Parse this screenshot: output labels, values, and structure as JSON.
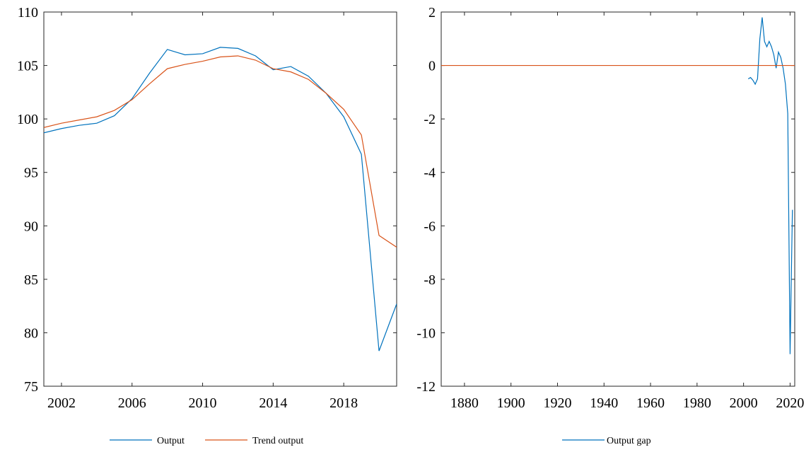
{
  "chart_data": [
    {
      "type": "line",
      "x": [
        2001,
        2002,
        2003,
        2004,
        2005,
        2006,
        2007,
        2008,
        2009,
        2010,
        2011,
        2012,
        2013,
        2014,
        2015,
        2016,
        2017,
        2018,
        2019,
        2020,
        2021
      ],
      "series": [
        {
          "name": "Output",
          "color": "#0072BD",
          "values": [
            98.7,
            99.1,
            99.4,
            99.6,
            100.3,
            101.9,
            104.3,
            106.5,
            106.0,
            106.1,
            106.7,
            106.6,
            105.9,
            104.6,
            104.9,
            104.0,
            102.4,
            100.2,
            96.7,
            78.3,
            82.7
          ]
        },
        {
          "name": "Trend output",
          "color": "#D95319",
          "values": [
            99.2,
            99.6,
            99.9,
            100.2,
            100.8,
            101.8,
            103.3,
            104.7,
            105.1,
            105.4,
            105.8,
            105.9,
            105.5,
            104.7,
            104.4,
            103.7,
            102.4,
            100.9,
            98.5,
            89.1,
            88.0
          ]
        }
      ],
      "xlim": [
        2001,
        2021
      ],
      "ylim": [
        75,
        110
      ],
      "xticks": [
        2002,
        2006,
        2010,
        2014,
        2018
      ],
      "xtick_labels": [
        "2002",
        "2006",
        "2010",
        "2014",
        "2018"
      ],
      "yticks": [
        75,
        80,
        85,
        90,
        95,
        100,
        105,
        110
      ],
      "ytick_labels": [
        "75",
        "80",
        "85",
        "90",
        "95",
        "100",
        "105",
        "110"
      ],
      "title": "",
      "xlabel": "",
      "ylabel": "",
      "grid": false,
      "legend": {
        "placement": "bottom",
        "entries": [
          "Output",
          "Trend output"
        ]
      }
    },
    {
      "type": "line",
      "series": [
        {
          "name": "Output gap",
          "color": "#0072BD",
          "x": [
            2002,
            2003,
            2004,
            2005,
            2006,
            2007,
            2008,
            2009,
            2010,
            2011,
            2012,
            2013,
            2014,
            2015,
            2016,
            2017,
            2018,
            2019,
            2020,
            2021
          ],
          "values": [
            -0.5,
            -0.45,
            -0.55,
            -0.7,
            -0.5,
            1.0,
            1.8,
            0.9,
            0.7,
            0.9,
            0.7,
            0.4,
            -0.1,
            0.5,
            0.3,
            -0.1,
            -0.7,
            -1.8,
            -10.8,
            -5.4
          ]
        },
        {
          "name": "",
          "color": "#D95319",
          "x": [
            1870,
            2022
          ],
          "values": [
            0,
            0
          ]
        }
      ],
      "xlim": [
        1870,
        2022
      ],
      "ylim": [
        -12,
        2
      ],
      "xticks": [
        1880,
        1900,
        1920,
        1940,
        1960,
        1980,
        2000,
        2020
      ],
      "xtick_labels": [
        "1880",
        "1900",
        "1920",
        "1940",
        "1960",
        "1980",
        "2000",
        "2020"
      ],
      "yticks": [
        -12,
        -10,
        -8,
        -6,
        -4,
        -2,
        0,
        2
      ],
      "ytick_labels": [
        "-12",
        "-10",
        "-8",
        "-6",
        "-4",
        "-2",
        "0",
        "2"
      ],
      "title": "",
      "xlabel": "",
      "ylabel": "",
      "grid": false,
      "legend": {
        "placement": "bottom",
        "entries": [
          "Output gap"
        ]
      }
    }
  ]
}
